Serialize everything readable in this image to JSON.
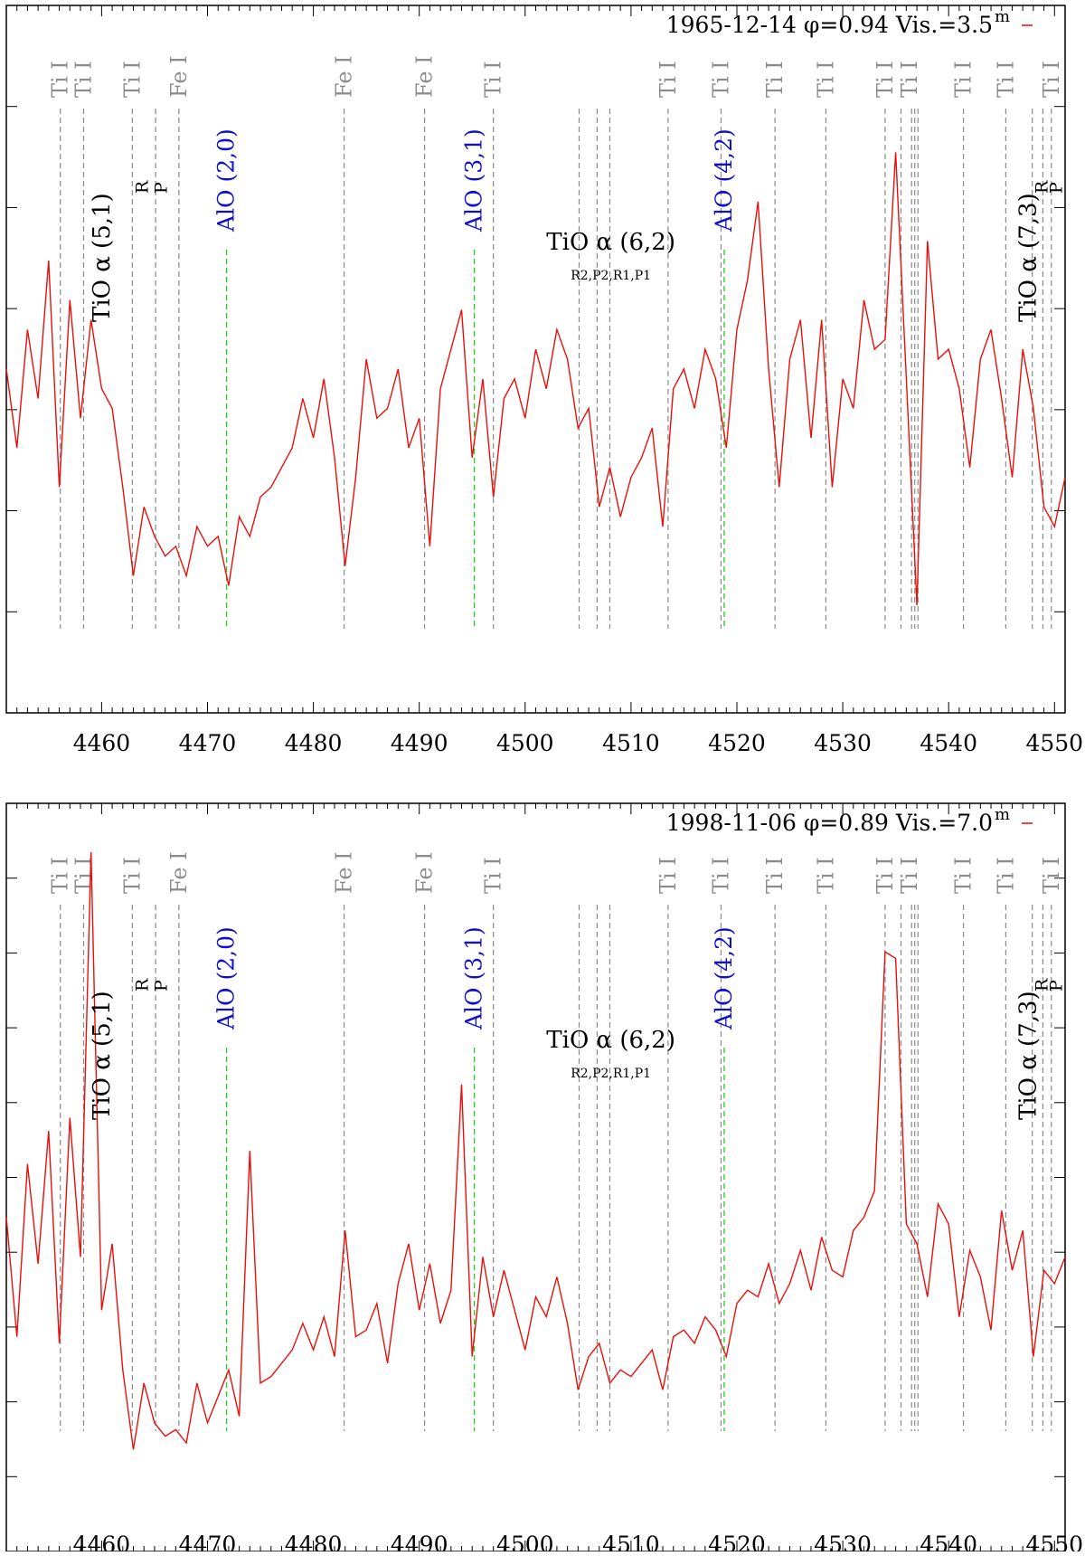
{
  "chart_data": [
    {
      "type": "line",
      "title": "1965-12-14 φ=0.94 Vis.=3.5",
      "legend_text": "1965-12-14 φ=0.94 Vis.=3.5",
      "legend_sup": "m",
      "legend_position": "top-right",
      "xlabel": "",
      "ylabel": "",
      "xlim": [
        4451,
        4551
      ],
      "ylim": [
        0,
        7
      ],
      "xticks": [
        "4460",
        "4470",
        "4480",
        "4490",
        "4500",
        "4510",
        "4520",
        "4530",
        "4540",
        "4550"
      ],
      "series": [
        {
          "name": "spectrum",
          "color": "#e8100a",
          "x": [
            4451,
            4452,
            4453,
            4454,
            4455,
            4456,
            4457,
            4458,
            4459,
            4460,
            4461,
            4462,
            4463,
            4464,
            4465,
            4466,
            4467,
            4468,
            4469,
            4470,
            4471,
            4472,
            4473,
            4474,
            4475,
            4476,
            4477,
            4478,
            4479,
            4480,
            4481,
            4482,
            4483,
            4484,
            4485,
            4486,
            4487,
            4488,
            4489,
            4490,
            4491,
            4492,
            4493,
            4494,
            4495,
            4496,
            4497,
            4498,
            4499,
            4500,
            4501,
            4502,
            4503,
            4504,
            4505,
            4506,
            4507,
            4508,
            4509,
            4510,
            4511,
            4512,
            4513,
            4514,
            4515,
            4516,
            4517,
            4518,
            4519,
            4520,
            4521,
            4522,
            4523,
            4524,
            4525,
            4526,
            4527,
            4528,
            4529,
            4530,
            4531,
            4532,
            4533,
            4534,
            4535,
            4536,
            4537,
            4538,
            4539,
            4540,
            4541,
            4542,
            4543,
            4544,
            4545,
            4546,
            4547,
            4548,
            4549,
            4550,
            4551
          ],
          "values": [
            3.4,
            2.6,
            3.8,
            3.1,
            4.5,
            2.2,
            4.1,
            2.9,
            3.9,
            3.2,
            3.0,
            2.2,
            1.3,
            2.0,
            1.7,
            1.5,
            1.6,
            1.3,
            1.8,
            1.6,
            1.7,
            1.2,
            1.9,
            1.7,
            2.1,
            2.2,
            2.4,
            2.6,
            3.1,
            2.7,
            3.3,
            2.5,
            1.4,
            2.3,
            3.5,
            2.9,
            3.0,
            3.4,
            2.6,
            2.9,
            1.6,
            3.2,
            3.6,
            4.0,
            2.5,
            3.3,
            2.1,
            3.1,
            3.3,
            2.9,
            3.6,
            3.2,
            3.8,
            3.5,
            2.8,
            3.0,
            2.0,
            2.4,
            1.9,
            2.3,
            2.5,
            2.8,
            1.8,
            3.2,
            3.4,
            3.0,
            3.6,
            3.3,
            2.6,
            3.8,
            4.3,
            5.1,
            3.4,
            2.2,
            3.5,
            3.9,
            2.7,
            3.9,
            2.2,
            3.3,
            3.0,
            4.1,
            3.6,
            3.7,
            5.6,
            3.3,
            1.0,
            4.7,
            3.5,
            3.6,
            3.2,
            2.4,
            3.5,
            3.8,
            3.1,
            2.3,
            3.6,
            3.0,
            2.0,
            1.8,
            2.3
          ]
        }
      ],
      "annotations": {
        "gray_labels": [
          "Ti I",
          "Ti I",
          "Ti I",
          "Fe I",
          "Fe I",
          "Fe I",
          "Ti I",
          "Ti I",
          "Ti I",
          "Ti I",
          "Ti I",
          "Ti I",
          "Ti I",
          "Ti I",
          "Ti I",
          "Ti I"
        ],
        "gray_lines_x": [
          4456.1,
          4458.3,
          4462.9,
          4465.1,
          4467.3,
          4482.9,
          4490.5,
          4497.0,
          4505.1,
          4506.8,
          4508.0,
          4513.5,
          4518.5,
          4523.6,
          4528.4,
          4534.0,
          4535.5,
          4536.5,
          4536.8,
          4537.1,
          4541.4,
          4545.4,
          4547.9,
          4548.9,
          4549.7
        ],
        "aio_labels": [
          "AlO (2,0)",
          "AlO (3,1)",
          "AlO (4,2)"
        ],
        "aio_lines_x": [
          4471.8,
          4495.2,
          4518.8
        ],
        "tio_51": "TiO α (5,1)",
        "tio_62": "TiO α (6,2)",
        "tio_62_sub": "R2,P2,R1,P1",
        "tio_73": "TiO α (7,3)",
        "branch_r": "R",
        "branch_p": "P"
      }
    },
    {
      "type": "line",
      "title": "1998-11-06 φ=0.89 Vis.=7.0",
      "legend_text": "1998-11-06 φ=0.89 Vis.=7.0",
      "legend_sup": "m",
      "legend_position": "top-right",
      "xlabel": "",
      "ylabel": "",
      "xlim": [
        4451,
        4551
      ],
      "ylim": [
        0,
        11
      ],
      "xticks": [
        "4460",
        "4470",
        "4480",
        "4490",
        "4500",
        "4510",
        "4520",
        "4530",
        "4540",
        "4550"
      ],
      "series": [
        {
          "name": "spectrum",
          "color": "#e8100a",
          "x": [
            4451,
            4452,
            4453,
            4454,
            4455,
            4456,
            4457,
            4458,
            4459,
            4460,
            4461,
            4462,
            4463,
            4464,
            4465,
            4466,
            4467,
            4468,
            4469,
            4470,
            4471,
            4472,
            4473,
            4474,
            4475,
            4476,
            4477,
            4478,
            4479,
            4480,
            4481,
            4482,
            4483,
            4484,
            4485,
            4486,
            4487,
            4488,
            4489,
            4490,
            4491,
            4492,
            4493,
            4494,
            4495,
            4496,
            4497,
            4498,
            4499,
            4500,
            4501,
            4502,
            4503,
            4504,
            4505,
            4506,
            4507,
            4508,
            4509,
            4510,
            4511,
            4512,
            4513,
            4514,
            4515,
            4516,
            4517,
            4518,
            4519,
            4520,
            4521,
            4522,
            4523,
            4524,
            4525,
            4526,
            4527,
            4528,
            4529,
            4530,
            4531,
            4532,
            4533,
            4534,
            4535,
            4536,
            4537,
            4538,
            4539,
            4540,
            4541,
            4542,
            4543,
            4544,
            4545,
            4546,
            4547,
            4548,
            4549,
            4550,
            4551
          ],
          "values": [
            4.9,
            3.1,
            5.7,
            4.2,
            6.2,
            3.0,
            6.4,
            4.3,
            10.4,
            3.5,
            4.5,
            2.6,
            1.4,
            2.4,
            1.8,
            1.6,
            1.7,
            1.5,
            2.4,
            1.8,
            2.2,
            2.6,
            1.9,
            5.9,
            2.4,
            2.5,
            2.7,
            2.9,
            3.3,
            2.9,
            3.4,
            2.8,
            4.7,
            3.1,
            3.2,
            3.6,
            2.7,
            3.9,
            4.5,
            3.5,
            4.2,
            3.3,
            3.8,
            6.9,
            2.8,
            4.3,
            3.4,
            4.1,
            3.5,
            2.9,
            3.7,
            3.4,
            4.0,
            3.3,
            2.3,
            2.8,
            3.0,
            2.4,
            2.6,
            2.5,
            2.7,
            2.9,
            2.3,
            3.1,
            3.2,
            3.0,
            3.4,
            3.2,
            2.8,
            3.6,
            3.8,
            3.7,
            4.2,
            3.6,
            3.9,
            4.4,
            3.8,
            4.6,
            4.1,
            4.0,
            4.7,
            4.9,
            5.3,
            8.9,
            8.8,
            4.8,
            4.5,
            3.7,
            5.1,
            4.8,
            3.4,
            4.4,
            4.0,
            3.2,
            5.0,
            4.1,
            4.7,
            2.8,
            4.1,
            3.9,
            4.3
          ]
        }
      ],
      "annotations": {
        "gray_labels": [
          "Ti I",
          "Ti I",
          "Ti I",
          "Fe I",
          "Fe I",
          "Fe I",
          "Ti I",
          "Ti I",
          "Ti I",
          "Ti I",
          "Ti I",
          "Ti I",
          "Ti I",
          "Ti I",
          "Ti I",
          "Ti I"
        ],
        "gray_lines_x": [
          4456.1,
          4458.3,
          4462.9,
          4465.1,
          4467.3,
          4482.9,
          4490.5,
          4497.0,
          4505.1,
          4506.8,
          4508.0,
          4513.5,
          4518.5,
          4523.6,
          4528.4,
          4534.0,
          4535.5,
          4536.5,
          4536.8,
          4537.1,
          4541.4,
          4545.4,
          4547.9,
          4548.9,
          4549.7
        ],
        "aio_labels": [
          "AlO (2,0)",
          "AlO (3,1)",
          "AlO (4,2)"
        ],
        "aio_lines_x": [
          4471.8,
          4495.2,
          4518.8
        ],
        "tio_51": "TiO α (5,1)",
        "tio_62": "TiO α (6,2)",
        "tio_62_sub": "R2,P2,R1,P1",
        "tio_73": "TiO α (7,3)",
        "branch_r": "R",
        "branch_p": "P"
      }
    }
  ],
  "colors": {
    "spectrum": "#e8100a",
    "atomic_line": "#8a8a8a",
    "aio_line": "#22cc22",
    "aio_label": "#1010cc",
    "label_gray": "#8c8c8c",
    "text": "#000000"
  }
}
